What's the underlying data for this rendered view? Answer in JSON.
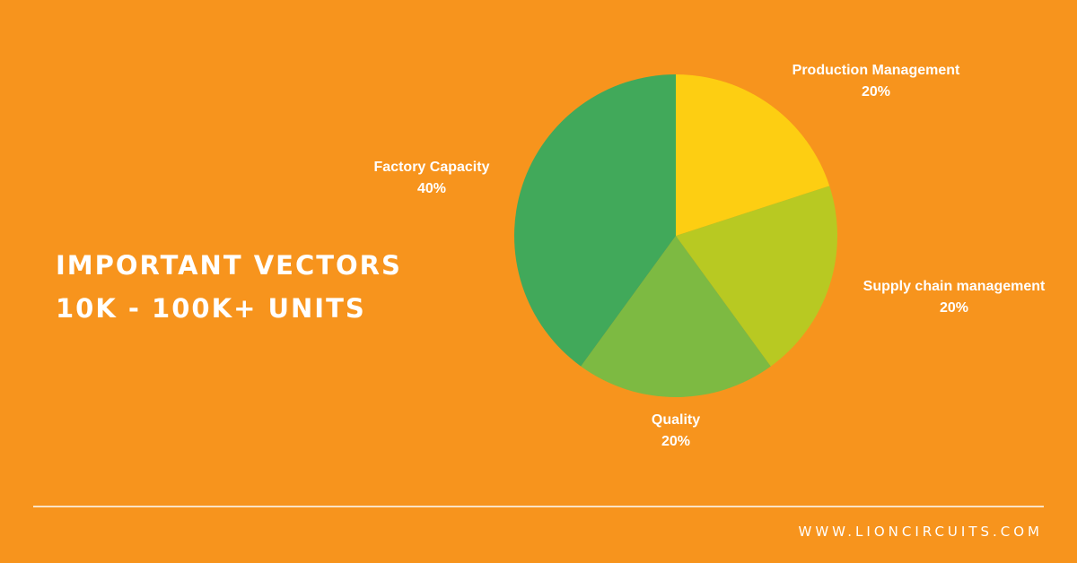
{
  "headline": {
    "line1": "IMPORTANT VECTORS",
    "line2": "10K - 100K+ UNITS"
  },
  "chart_data": {
    "type": "pie",
    "slices": [
      {
        "label": "Production Management",
        "value": 20,
        "value_label": "20%",
        "color": "#FDCE12"
      },
      {
        "label": "Supply chain management",
        "value": 20,
        "value_label": "20%",
        "color": "#B8C922"
      },
      {
        "label": "Quality",
        "value": 20,
        "value_label": "20%",
        "color": "#7DBA42"
      },
      {
        "label": "Factory Capacity",
        "value": 40,
        "value_label": "40%",
        "color": "#41A95A"
      }
    ],
    "start_angle": "12 o'clock",
    "direction": "clockwise"
  },
  "footer": {
    "url": "WWW.LIONCIRCUITS.COM"
  },
  "colors": {
    "background": "#F7941D",
    "text": "#FFFFFF",
    "divider": "#FBE3C4"
  }
}
